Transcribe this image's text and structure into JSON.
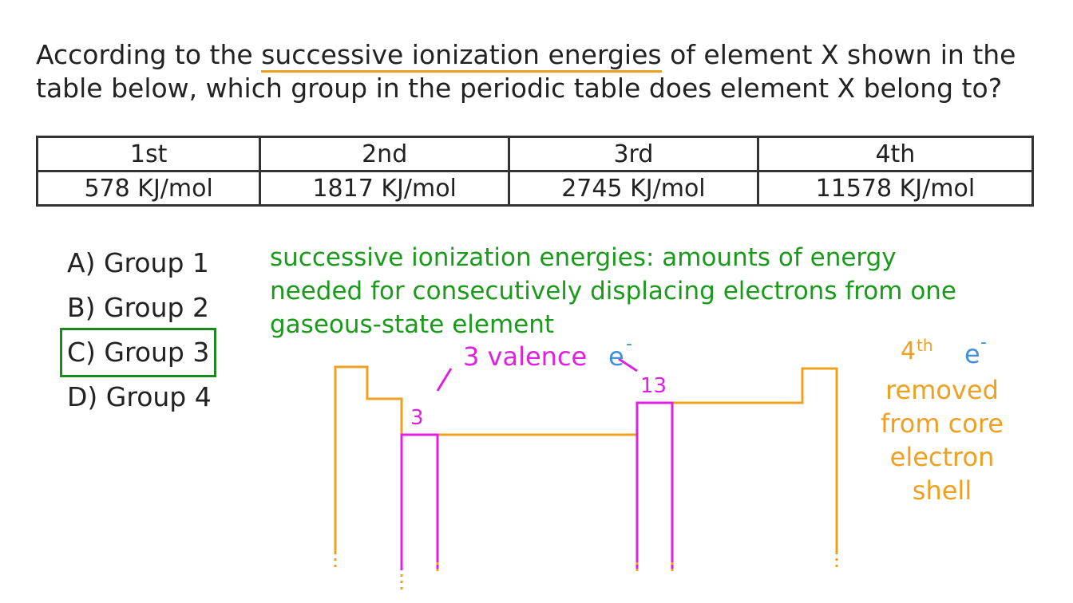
{
  "question": {
    "before": "According to the",
    "highlight": "successive ionization energies",
    "after": "of element X shown in the table below, which group in the periodic table does element X belong to?"
  },
  "table": {
    "headers": [
      "1st",
      "2nd",
      "3rd",
      "4th"
    ],
    "rows": [
      [
        "578 KJ/mol",
        "1817 KJ/mol",
        "2745 KJ/mol",
        "11578 KJ/mol"
      ]
    ]
  },
  "options": [
    "A) Group 1",
    "B) Group 2",
    "C) Group 3",
    "D) Group 4"
  ],
  "definition": "successive ionization energies: amounts of energy needed for consecutively displacing electrons from one gaseous-state element",
  "diagram": {
    "valence_label": "3 valence",
    "valence_symbol": "e",
    "valence_charge": "-",
    "group_left": "3",
    "group_right": "13",
    "core_number": "4",
    "core_suffix": "th",
    "core_symbol": "e",
    "core_charge": "-",
    "core_text": "removed from core electron shell"
  }
}
